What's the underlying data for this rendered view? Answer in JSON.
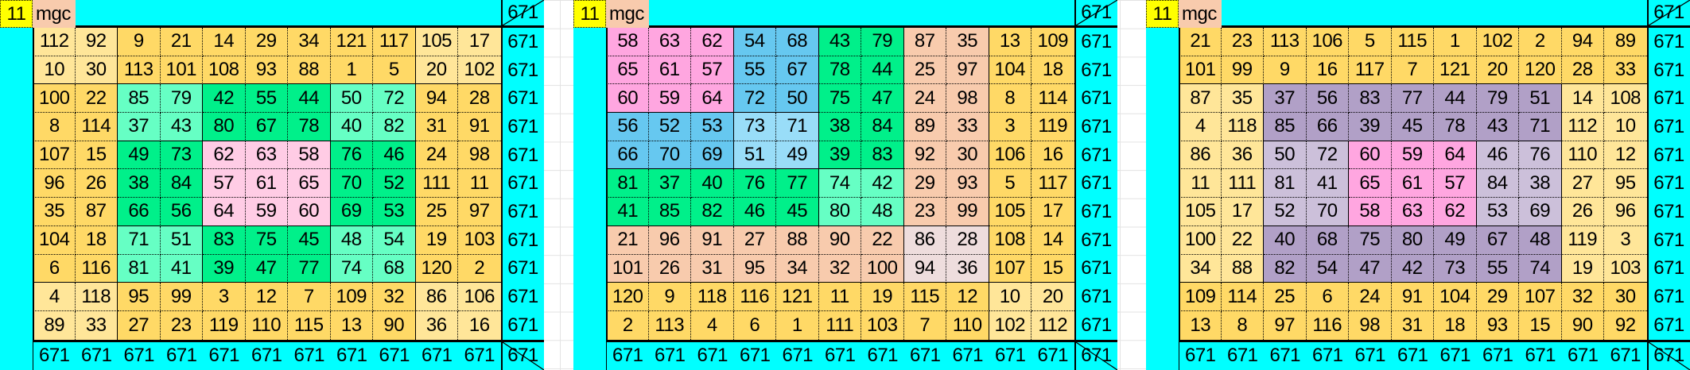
{
  "order_label": "11",
  "magic_label": "mgc",
  "magic_sum": "671",
  "palette": {
    "O": "#FFD966",
    "L": "#FFE699",
    "G": "#00F08A",
    "M": "#66FFC4",
    "P": "#FFCCE5",
    "K": "#FFA6E0",
    "B": "#66C8F0",
    "C": "#99DDF8",
    "E": "#F8CBAD",
    "W": "#EEDDDD",
    "V": "#B1A0C7",
    "U": "#CCC0DA"
  },
  "grids": [
    {
      "row_sums": [
        "671",
        "671",
        "671",
        "671",
        "671",
        "671",
        "671",
        "671",
        "671",
        "671",
        "671"
      ],
      "col_sums": [
        "671",
        "671",
        "671",
        "671",
        "671",
        "671",
        "671",
        "671",
        "671",
        "671",
        "671"
      ],
      "colors": [
        "LLOOOOOOOLL",
        "LLOOOOOOOLL",
        "OOMMGGGMMOO",
        "OOMMGGGMMOO",
        "OOGGPPPGGOO",
        "OOGGPPPGGOO",
        "OOGGPPPGGOO",
        "OOMMGGGMMOO",
        "OOMMGGGMMOO",
        "LLOOOOOOOLL",
        "LLOOOOOOOLL"
      ],
      "values": [
        [
          "112",
          "92",
          "9",
          "21",
          "14",
          "29",
          "34",
          "121",
          "117",
          "105",
          "17"
        ],
        [
          "10",
          "30",
          "113",
          "101",
          "108",
          "93",
          "88",
          "1",
          "5",
          "20",
          "102"
        ],
        [
          "100",
          "22",
          "85",
          "79",
          "42",
          "55",
          "44",
          "50",
          "72",
          "94",
          "28"
        ],
        [
          "8",
          "114",
          "37",
          "43",
          "80",
          "67",
          "78",
          "40",
          "82",
          "31",
          "91"
        ],
        [
          "107",
          "15",
          "49",
          "73",
          "62",
          "63",
          "58",
          "76",
          "46",
          "24",
          "98"
        ],
        [
          "96",
          "26",
          "38",
          "84",
          "57",
          "61",
          "65",
          "70",
          "52",
          "111",
          "11"
        ],
        [
          "35",
          "87",
          "66",
          "56",
          "64",
          "59",
          "60",
          "69",
          "53",
          "25",
          "97"
        ],
        [
          "104",
          "18",
          "71",
          "51",
          "83",
          "75",
          "45",
          "48",
          "54",
          "19",
          "103"
        ],
        [
          "6",
          "116",
          "81",
          "41",
          "39",
          "47",
          "77",
          "74",
          "68",
          "120",
          "2"
        ],
        [
          "4",
          "118",
          "95",
          "99",
          "3",
          "12",
          "7",
          "109",
          "32",
          "86",
          "106"
        ],
        [
          "89",
          "33",
          "27",
          "23",
          "119",
          "110",
          "115",
          "13",
          "90",
          "36",
          "16"
        ]
      ]
    },
    {
      "row_sums": [
        "671",
        "671",
        "671",
        "671",
        "671",
        "671",
        "671",
        "671",
        "671",
        "671",
        "671"
      ],
      "col_sums": [
        "671",
        "671",
        "671",
        "671",
        "671",
        "671",
        "671",
        "671",
        "671",
        "671",
        "671"
      ],
      "colors": [
        "KKKBBGGEEOO",
        "KKKBBGGEEOO",
        "KKKBBGGEEOO",
        "BBBCCGGEEOO",
        "BBBCCGGEEOO",
        "GGGGGMMEEOO",
        "GGGGGMMEEOO",
        "EEEEEEEWWOO",
        "EEEEEEEWWOO",
        "OOOOOOOOOLL",
        "OOOOOOOOOLL"
      ],
      "values": [
        [
          "58",
          "63",
          "62",
          "54",
          "68",
          "43",
          "79",
          "87",
          "35",
          "13",
          "109"
        ],
        [
          "65",
          "61",
          "57",
          "55",
          "67",
          "78",
          "44",
          "25",
          "97",
          "104",
          "18"
        ],
        [
          "60",
          "59",
          "64",
          "72",
          "50",
          "75",
          "47",
          "24",
          "98",
          "8",
          "114"
        ],
        [
          "56",
          "52",
          "53",
          "73",
          "71",
          "38",
          "84",
          "89",
          "33",
          "3",
          "119"
        ],
        [
          "66",
          "70",
          "69",
          "51",
          "49",
          "39",
          "83",
          "92",
          "30",
          "106",
          "16"
        ],
        [
          "81",
          "37",
          "40",
          "76",
          "77",
          "74",
          "42",
          "29",
          "93",
          "5",
          "117"
        ],
        [
          "41",
          "85",
          "82",
          "46",
          "45",
          "80",
          "48",
          "23",
          "99",
          "105",
          "17"
        ],
        [
          "21",
          "96",
          "91",
          "27",
          "88",
          "90",
          "22",
          "86",
          "28",
          "108",
          "14"
        ],
        [
          "101",
          "26",
          "31",
          "95",
          "34",
          "32",
          "100",
          "94",
          "36",
          "107",
          "15"
        ],
        [
          "120",
          "9",
          "118",
          "116",
          "121",
          "11",
          "19",
          "115",
          "12",
          "10",
          "20"
        ],
        [
          "2",
          "113",
          "4",
          "6",
          "1",
          "111",
          "103",
          "7",
          "110",
          "102",
          "112"
        ]
      ]
    },
    {
      "row_sums": [
        "671",
        "671",
        "671",
        "671",
        "671",
        "671",
        "671",
        "671",
        "671",
        "671",
        "671"
      ],
      "col_sums": [
        "671",
        "671",
        "671",
        "671",
        "671",
        "671",
        "671",
        "671",
        "671",
        "671",
        "671"
      ],
      "colors": [
        "OOOOOOOOOOO",
        "OOOOOOOOOOO",
        "LLVVVVVVVLL",
        "LLVVVVVVVLL",
        "LLUUKKKUULL",
        "LLUUKKKUULL",
        "LLUUKKKUULL",
        "LLVVVVVVVLL",
        "LLVVVVVVVLL",
        "OOOOOOOOOOO",
        "OOOOOOOOOOO"
      ],
      "values": [
        [
          "21",
          "23",
          "113",
          "106",
          "5",
          "115",
          "1",
          "102",
          "2",
          "94",
          "89"
        ],
        [
          "101",
          "99",
          "9",
          "16",
          "117",
          "7",
          "121",
          "20",
          "120",
          "28",
          "33"
        ],
        [
          "87",
          "35",
          "37",
          "56",
          "83",
          "77",
          "44",
          "79",
          "51",
          "14",
          "108"
        ],
        [
          "4",
          "118",
          "85",
          "66",
          "39",
          "45",
          "78",
          "43",
          "71",
          "112",
          "10"
        ],
        [
          "86",
          "36",
          "50",
          "72",
          "60",
          "59",
          "64",
          "46",
          "76",
          "110",
          "12"
        ],
        [
          "11",
          "111",
          "81",
          "41",
          "65",
          "61",
          "57",
          "84",
          "38",
          "27",
          "95"
        ],
        [
          "105",
          "17",
          "52",
          "70",
          "58",
          "63",
          "62",
          "53",
          "69",
          "26",
          "96"
        ],
        [
          "100",
          "22",
          "40",
          "68",
          "75",
          "80",
          "49",
          "67",
          "48",
          "119",
          "3"
        ],
        [
          "34",
          "88",
          "82",
          "54",
          "47",
          "42",
          "73",
          "55",
          "74",
          "19",
          "103"
        ],
        [
          "109",
          "114",
          "25",
          "6",
          "24",
          "91",
          "104",
          "29",
          "107",
          "32",
          "30"
        ],
        [
          "13",
          "8",
          "97",
          "116",
          "98",
          "31",
          "18",
          "93",
          "15",
          "90",
          "92"
        ]
      ]
    }
  ]
}
